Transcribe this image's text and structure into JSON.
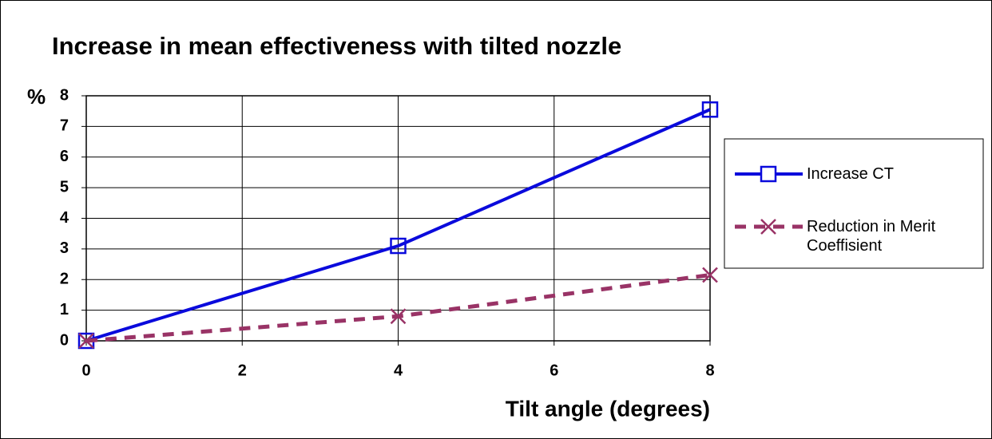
{
  "chart_data": {
    "type": "line",
    "title": "Increase in mean effectiveness with tilted nozzle",
    "x_label": "Tilt angle (degrees)",
    "y_label": "%",
    "x": [
      0,
      4,
      8
    ],
    "series": [
      {
        "name": "Increase CT",
        "color": "#0a0adc",
        "marker": "square",
        "dash": "solid",
        "values": [
          0,
          3.1,
          7.55
        ]
      },
      {
        "name": "Reduction in Merit Coeffisient",
        "color": "#993366",
        "marker": "x",
        "dash": "dashed",
        "values": [
          0,
          0.8,
          2.15
        ]
      }
    ],
    "xlim": [
      0,
      8
    ],
    "xticks": [
      0,
      2,
      4,
      6,
      8
    ],
    "ylim": [
      0,
      8
    ],
    "yticks": [
      0,
      1,
      2,
      3,
      4,
      5,
      6,
      7,
      8
    ],
    "grid": true,
    "legend": "right"
  }
}
